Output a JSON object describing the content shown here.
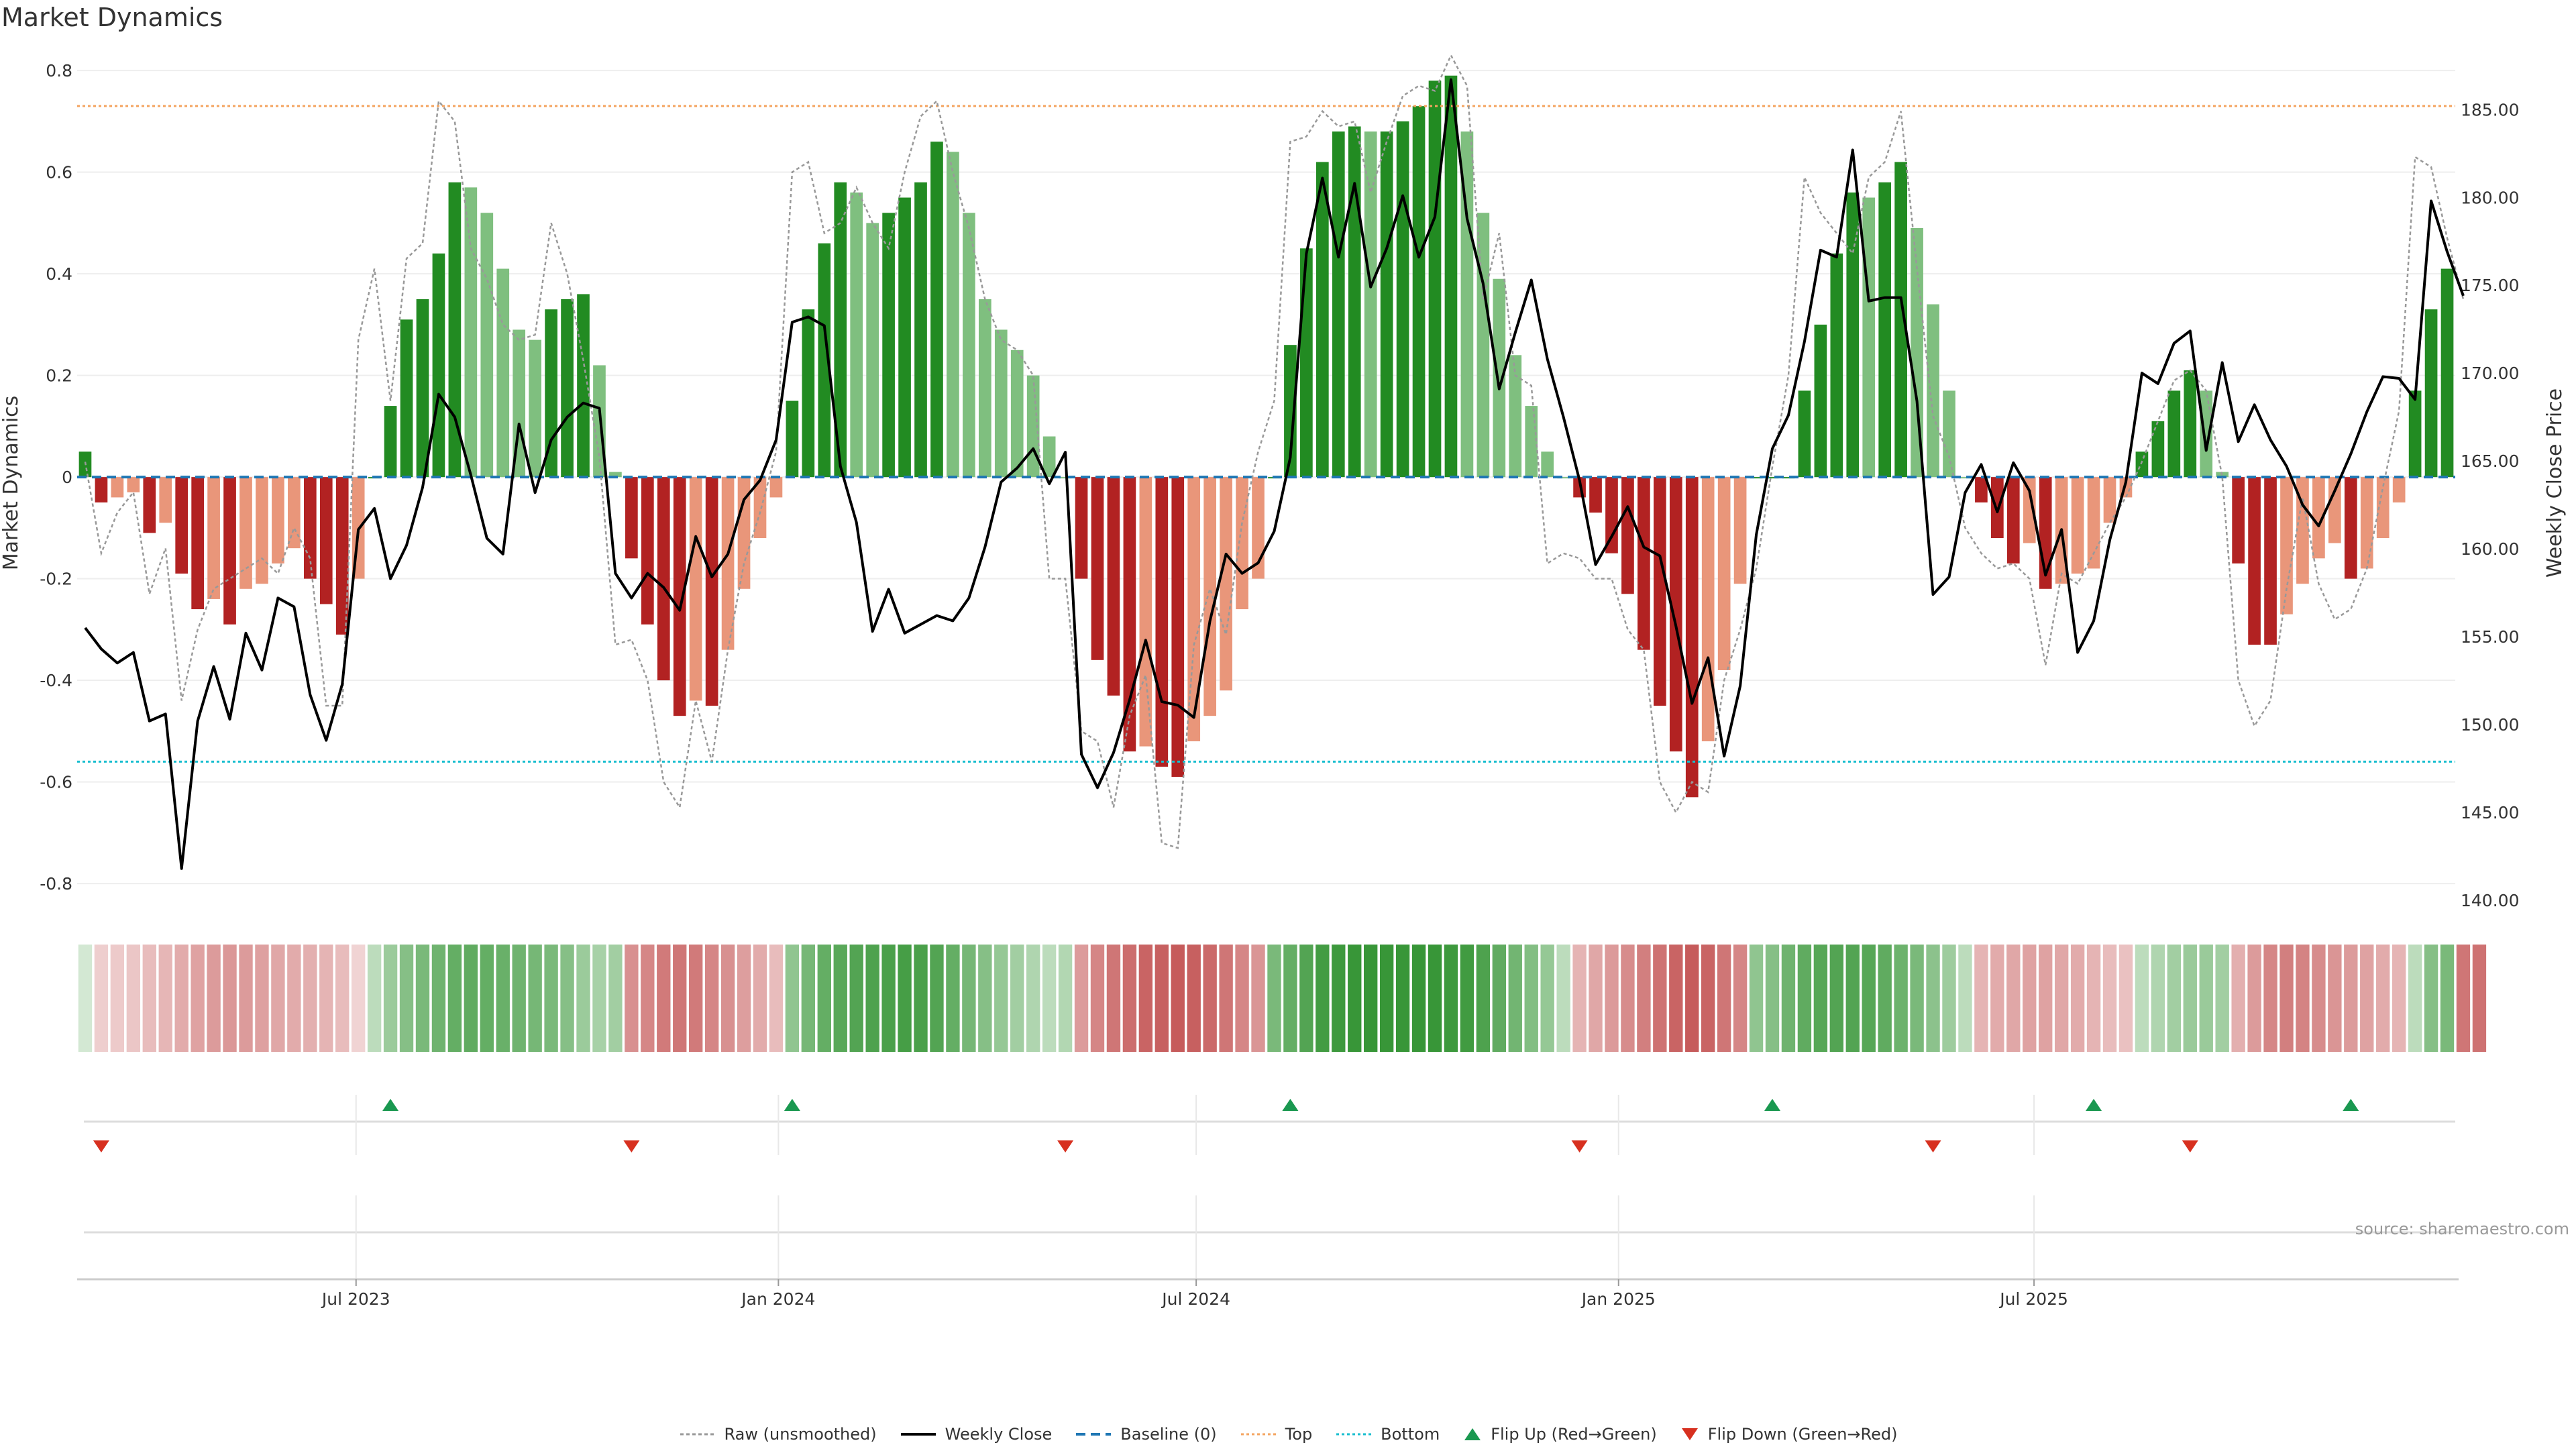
{
  "title": "Market Dynamics",
  "source": "source: sharemaestro.com",
  "legend": {
    "raw": "Raw (unsmoothed)",
    "close": "Weekly Close",
    "baseline": "Baseline (0)",
    "top": "Top",
    "bottom": "Bottom",
    "flip_up": "Flip Up (Red→Green)",
    "flip_down": "Flip Down (Green→Red)"
  },
  "colors": {
    "green_strong": "#228b22",
    "green_light": "#7fbf7f",
    "red_strong": "#b22222",
    "red_light": "#e9967a",
    "raw_line": "#999999",
    "close_line": "#000000",
    "baseline": "#1f77b4",
    "top_line": "#f4a460",
    "bottom_line": "#17becf",
    "flip_up": "#1a9850",
    "flip_down": "#d7301f"
  },
  "chart_data": {
    "type": "bar",
    "x_start": "2023-03-05",
    "x_step": "1 week",
    "xtick_labels": [
      "Jul 2023",
      "Jan 2024",
      "Jul 2024",
      "Jan 2025",
      "Jul 2025"
    ],
    "xtick_dates": [
      "2023-07-01",
      "2024-01-01",
      "2024-07-01",
      "2025-01-01",
      "2025-07-01"
    ],
    "ylabel_left": "Market Dynamics",
    "ylabel_right": "Weekly Close Price",
    "yticks_left": [
      0.8,
      0.6,
      0.4,
      0.2,
      0,
      -0.2,
      -0.4,
      -0.6,
      -0.8
    ],
    "yticks_right": [
      "185.00",
      "180.00",
      "175.00",
      "170.00",
      "165.00",
      "160.00",
      "155.00",
      "150.00",
      "145.00",
      "140.00"
    ],
    "ylim_left": [
      -0.85,
      0.82
    ],
    "ylim_right": [
      139.5,
      187.8
    ],
    "top_level": 0.73,
    "bottom_level": -0.56,
    "baseline": 0,
    "bars": [
      0.05,
      -0.05,
      -0.04,
      -0.03,
      -0.11,
      -0.09,
      -0.19,
      -0.26,
      -0.24,
      -0.29,
      -0.22,
      -0.21,
      -0.17,
      -0.14,
      -0.2,
      -0.25,
      -0.31,
      -0.2,
      0,
      0.14,
      0.31,
      0.35,
      0.44,
      0.58,
      0.57,
      0.52,
      0.41,
      0.29,
      0.27,
      0.33,
      0.35,
      0.36,
      0.22,
      0.01,
      -0.16,
      -0.29,
      -0.4,
      -0.47,
      -0.44,
      -0.45,
      -0.34,
      -0.22,
      -0.12,
      -0.04,
      0.15,
      0.33,
      0.46,
      0.58,
      0.56,
      0.5,
      0.52,
      0.55,
      0.58,
      0.66,
      0.64,
      0.52,
      0.35,
      0.29,
      0.25,
      0.2,
      0.08,
      0,
      -0.2,
      -0.36,
      -0.43,
      -0.54,
      -0.53,
      -0.57,
      -0.59,
      -0.52,
      -0.47,
      -0.42,
      -0.26,
      -0.2,
      0,
      0.26,
      0.45,
      0.62,
      0.68,
      0.69,
      0.68,
      0.68,
      0.7,
      0.73,
      0.78,
      0.79,
      0.68,
      0.52,
      0.39,
      0.24,
      0.14,
      0.05,
      0,
      -0.04,
      -0.07,
      -0.15,
      -0.23,
      -0.34,
      -0.45,
      -0.54,
      -0.63,
      -0.52,
      -0.38,
      -0.21,
      0,
      0,
      0,
      0.17,
      0.3,
      0.44,
      0.56,
      0.55,
      0.58,
      0.62,
      0.49,
      0.34,
      0.17,
      0,
      -0.05,
      -0.12,
      -0.17,
      -0.13,
      -0.22,
      -0.21,
      -0.19,
      -0.18,
      -0.09,
      -0.04,
      0.05,
      0.11,
      0.17,
      0.21,
      0.17,
      0.01,
      -0.17,
      -0.33,
      -0.33,
      -0.27,
      -0.21,
      -0.16,
      -0.13,
      -0.2,
      -0.18,
      -0.12,
      -0.05,
      0.17,
      0.33,
      0.41
    ],
    "raw": [
      0.03,
      -0.15,
      -0.07,
      -0.03,
      -0.23,
      -0.14,
      -0.44,
      -0.3,
      -0.22,
      -0.2,
      -0.18,
      -0.16,
      -0.19,
      -0.1,
      -0.16,
      -0.45,
      -0.45,
      0.27,
      0.41,
      0.15,
      0.43,
      0.46,
      0.74,
      0.7,
      0.45,
      0.39,
      0.3,
      0.27,
      0.28,
      0.5,
      0.4,
      0.23,
      0.04,
      -0.33,
      -0.32,
      -0.4,
      -0.6,
      -0.65,
      -0.44,
      -0.56,
      -0.34,
      -0.17,
      -0.07,
      0.05,
      0.6,
      0.62,
      0.48,
      0.5,
      0.57,
      0.5,
      0.45,
      0.6,
      0.71,
      0.74,
      0.6,
      0.49,
      0.35,
      0.27,
      0.25,
      0.2,
      -0.2,
      -0.2,
      -0.5,
      -0.52,
      -0.65,
      -0.47,
      -0.39,
      -0.72,
      -0.73,
      -0.33,
      -0.22,
      -0.31,
      -0.09,
      0.05,
      0.15,
      0.66,
      0.67,
      0.72,
      0.69,
      0.7,
      0.56,
      0.66,
      0.75,
      0.77,
      0.76,
      0.83,
      0.77,
      0.35,
      0.48,
      0.2,
      0.18,
      -0.17,
      -0.15,
      -0.16,
      -0.2,
      -0.2,
      -0.3,
      -0.34,
      -0.6,
      -0.66,
      -0.6,
      -0.62,
      -0.4,
      -0.3,
      -0.18,
      0.02,
      0.2,
      0.59,
      0.52,
      0.48,
      0.44,
      0.59,
      0.62,
      0.72,
      0.41,
      0.12,
      0.04,
      -0.1,
      -0.15,
      -0.18,
      -0.17,
      -0.2,
      -0.37,
      -0.19,
      -0.21,
      -0.15,
      -0.09,
      -0.04,
      0.03,
      0.11,
      0.19,
      0.21,
      0.17,
      0,
      -0.4,
      -0.49,
      -0.44,
      -0.22,
      -0.04,
      -0.21,
      -0.28,
      -0.26,
      -0.18,
      -0.02,
      0.13,
      0.63,
      0.61,
      0.47,
      0.35
    ],
    "close": [
      155.5,
      154.3,
      153.5,
      154.1,
      150.2,
      150.6,
      141.8,
      150.2,
      153.3,
      150.3,
      155.2,
      153.1,
      157.2,
      156.7,
      151.7,
      149.1,
      152.3,
      161.1,
      162.3,
      158.3,
      160.2,
      163.5,
      168.8,
      167.5,
      164.2,
      160.6,
      159.7,
      167.1,
      163.2,
      166.2,
      167.5,
      168.3,
      168,
      158.6,
      157.2,
      158.6,
      157.8,
      156.5,
      160.7,
      158.4,
      159.7,
      162.8,
      163.9,
      166.2,
      172.9,
      173.2,
      172.7,
      164.7,
      161.5,
      155.3,
      157.7,
      155.2,
      155.7,
      156.2,
      155.9,
      157.2,
      160.1,
      163.8,
      164.6,
      165.7,
      163.7,
      165.5,
      148.3,
      146.4,
      148.4,
      151.4,
      154.8,
      151.3,
      151.1,
      150.4,
      155.9,
      159.7,
      158.6,
      159.2,
      161,
      165.2,
      176.8,
      181.1,
      176.6,
      180.8,
      174.9,
      177.1,
      180.1,
      176.6,
      178.9,
      186.7,
      178.8,
      175.1,
      169.1,
      172.3,
      175.3,
      170.8,
      167.5,
      163.9,
      159.1,
      160.7,
      162.4,
      160.1,
      159.6,
      155.6,
      151.2,
      153.8,
      148.2,
      152.2,
      160.8,
      165.7,
      167.6,
      171.8,
      177,
      176.6,
      182.7,
      174.1,
      174.3,
      174.3,
      168.4,
      157.4,
      158.4,
      163.2,
      164.8,
      162.1,
      164.9,
      163.3,
      158.5,
      161.1,
      154.1,
      155.9,
      160.5,
      163.8,
      170,
      169.4,
      171.7,
      172.4,
      165.6,
      170.6,
      166.1,
      168.2,
      166.2,
      164.7,
      162.5,
      161.3,
      163.3,
      165.4,
      167.8,
      169.8,
      169.7,
      168.5,
      179.8,
      176.9,
      174.4
    ],
    "heat_strip": [
      0.2,
      0.22,
      0.24,
      0.26,
      0.3,
      0.33,
      0.38,
      0.42,
      0.45,
      0.47,
      0.45,
      0.43,
      0.4,
      0.38,
      0.36,
      0.34,
      0.3,
      0.2,
      0.3,
      0.45,
      0.55,
      0.6,
      0.65,
      0.7,
      0.72,
      0.7,
      0.68,
      0.65,
      0.62,
      0.6,
      0.55,
      0.45,
      0.4,
      0.42,
      0.5,
      0.55,
      0.6,
      0.62,
      0.6,
      0.55,
      0.5,
      0.44,
      0.38,
      0.3,
      0.5,
      0.62,
      0.7,
      0.75,
      0.78,
      0.8,
      0.82,
      0.84,
      0.82,
      0.78,
      0.7,
      0.62,
      0.55,
      0.48,
      0.42,
      0.36,
      0.3,
      0.35,
      0.45,
      0.55,
      0.62,
      0.66,
      0.7,
      0.72,
      0.74,
      0.72,
      0.68,
      0.62,
      0.55,
      0.48,
      0.6,
      0.7,
      0.78,
      0.85,
      0.88,
      0.9,
      0.9,
      0.9,
      0.9,
      0.9,
      0.9,
      0.88,
      0.86,
      0.8,
      0.72,
      0.64,
      0.56,
      0.48,
      0.3,
      0.34,
      0.4,
      0.46,
      0.52,
      0.58,
      0.64,
      0.7,
      0.74,
      0.7,
      0.62,
      0.55,
      0.5,
      0.55,
      0.65,
      0.72,
      0.76,
      0.78,
      0.78,
      0.76,
      0.72,
      0.66,
      0.6,
      0.52,
      0.44,
      0.3,
      0.34,
      0.38,
      0.4,
      0.42,
      0.42,
      0.4,
      0.38,
      0.34,
      0.3,
      0.28,
      0.3,
      0.36,
      0.42,
      0.46,
      0.46,
      0.42,
      0.36,
      0.45,
      0.55,
      0.58,
      0.56,
      0.52,
      0.48,
      0.45,
      0.42,
      0.38,
      0.34,
      0.3,
      0.55,
      0.6,
      0.62,
      0.64
    ],
    "flip_up_index": [
      19,
      44,
      75,
      105,
      125,
      141
    ],
    "flip_down_index": [
      1,
      34,
      61,
      93,
      115,
      131
    ]
  }
}
